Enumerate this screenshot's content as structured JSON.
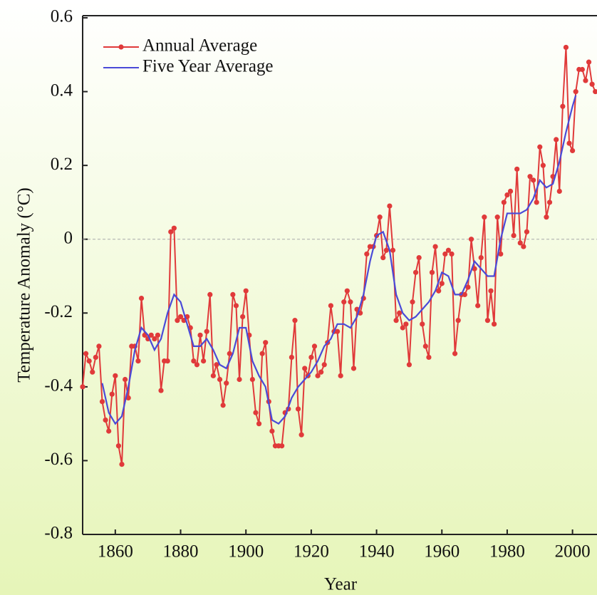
{
  "chart_data": {
    "type": "line",
    "xlabel": "Year",
    "ylabel": "Temperature Anomaly (°C)",
    "xlim": [
      1850,
      2007.5
    ],
    "ylim": [
      -0.8,
      0.6
    ],
    "xticks": [
      1860,
      1880,
      1900,
      1920,
      1940,
      1960,
      1980,
      2000
    ],
    "yticks": [
      0.6,
      0.4,
      0.2,
      0,
      -0.2,
      -0.4,
      -0.6,
      -0.8
    ],
    "zero_line": true,
    "legend": "upper left",
    "series": [
      {
        "name": "Annual Average",
        "color": "#e03a3a",
        "markers": true,
        "x": [
          1850,
          1851,
          1852,
          1853,
          1854,
          1855,
          1856,
          1857,
          1858,
          1859,
          1860,
          1861,
          1862,
          1863,
          1864,
          1865,
          1866,
          1867,
          1868,
          1869,
          1870,
          1871,
          1872,
          1873,
          1874,
          1875,
          1876,
          1877,
          1878,
          1879,
          1880,
          1881,
          1882,
          1883,
          1884,
          1885,
          1886,
          1887,
          1888,
          1889,
          1890,
          1891,
          1892,
          1893,
          1894,
          1895,
          1896,
          1897,
          1898,
          1899,
          1900,
          1901,
          1902,
          1903,
          1904,
          1905,
          1906,
          1907,
          1908,
          1909,
          1910,
          1911,
          1912,
          1913,
          1914,
          1915,
          1916,
          1917,
          1918,
          1919,
          1920,
          1921,
          1922,
          1923,
          1924,
          1925,
          1926,
          1927,
          1928,
          1929,
          1930,
          1931,
          1932,
          1933,
          1934,
          1935,
          1936,
          1937,
          1938,
          1939,
          1940,
          1941,
          1942,
          1943,
          1944,
          1945,
          1946,
          1947,
          1948,
          1949,
          1950,
          1951,
          1952,
          1953,
          1954,
          1955,
          1956,
          1957,
          1958,
          1959,
          1960,
          1961,
          1962,
          1963,
          1964,
          1965,
          1966,
          1967,
          1968,
          1969,
          1970,
          1971,
          1972,
          1973,
          1974,
          1975,
          1976,
          1977,
          1978,
          1979,
          1980,
          1981,
          1982,
          1983,
          1984,
          1985,
          1986,
          1987,
          1988,
          1989,
          1990,
          1991,
          1992,
          1993,
          1994,
          1995,
          1996,
          1997,
          1998,
          1999,
          2000,
          2001,
          2002,
          2003,
          2004,
          2005,
          2006,
          2007
        ],
        "values": [
          -0.4,
          -0.31,
          -0.33,
          -0.36,
          -0.32,
          -0.29,
          -0.44,
          -0.49,
          -0.52,
          -0.42,
          -0.37,
          -0.56,
          -0.61,
          -0.38,
          -0.43,
          -0.29,
          -0.29,
          -0.33,
          -0.16,
          -0.26,
          -0.27,
          -0.26,
          -0.27,
          -0.26,
          -0.41,
          -0.33,
          -0.33,
          0.02,
          0.03,
          -0.22,
          -0.21,
          -0.22,
          -0.21,
          -0.24,
          -0.33,
          -0.34,
          -0.26,
          -0.33,
          -0.25,
          -0.15,
          -0.37,
          -0.34,
          -0.38,
          -0.45,
          -0.39,
          -0.31,
          -0.15,
          -0.18,
          -0.38,
          -0.21,
          -0.14,
          -0.26,
          -0.38,
          -0.47,
          -0.5,
          -0.31,
          -0.28,
          -0.44,
          -0.52,
          -0.56,
          -0.56,
          -0.56,
          -0.47,
          -0.46,
          -0.32,
          -0.22,
          -0.46,
          -0.53,
          -0.35,
          -0.37,
          -0.32,
          -0.29,
          -0.37,
          -0.36,
          -0.34,
          -0.28,
          -0.18,
          -0.25,
          -0.25,
          -0.37,
          -0.17,
          -0.14,
          -0.17,
          -0.35,
          -0.19,
          -0.2,
          -0.16,
          -0.04,
          -0.02,
          -0.02,
          0.01,
          0.06,
          -0.05,
          -0.03,
          0.09,
          -0.03,
          -0.22,
          -0.2,
          -0.24,
          -0.23,
          -0.34,
          -0.17,
          -0.09,
          -0.05,
          -0.23,
          -0.29,
          -0.32,
          -0.09,
          -0.02,
          -0.14,
          -0.12,
          -0.04,
          -0.03,
          -0.04,
          -0.31,
          -0.22,
          -0.15,
          -0.15,
          -0.13,
          0,
          -0.08,
          -0.18,
          -0.05,
          0.06,
          -0.22,
          -0.14,
          -0.23,
          0.06,
          -0.04,
          0.1,
          0.12,
          0.13,
          0.01,
          0.19,
          -0.01,
          -0.02,
          0.02,
          0.17,
          0.16,
          0.1,
          0.25,
          0.2,
          0.06,
          0.1,
          0.17,
          0.27,
          0.13,
          0.36,
          0.52,
          0.26,
          0.24,
          0.4,
          0.46,
          0.46,
          0.43,
          0.48,
          0.42,
          0.4
        ]
      },
      {
        "name": "Five Year Average",
        "color": "#4a4ad8",
        "markers": false,
        "x": [
          1856,
          1858,
          1860,
          1862,
          1864,
          1866,
          1868,
          1870,
          1872,
          1874,
          1876,
          1878,
          1880,
          1882,
          1884,
          1886,
          1888,
          1890,
          1892,
          1894,
          1896,
          1898,
          1900,
          1902,
          1904,
          1906,
          1908,
          1910,
          1912,
          1914,
          1916,
          1918,
          1920,
          1922,
          1924,
          1926,
          1928,
          1930,
          1932,
          1934,
          1936,
          1938,
          1940,
          1942,
          1944,
          1946,
          1948,
          1950,
          1952,
          1954,
          1956,
          1958,
          1960,
          1962,
          1964,
          1966,
          1968,
          1970,
          1972,
          1974,
          1976,
          1978,
          1980,
          1982,
          1984,
          1986,
          1988,
          1990,
          1992,
          1994,
          1996,
          1998,
          2000,
          2001
        ],
        "values": [
          -0.39,
          -0.47,
          -0.5,
          -0.48,
          -0.4,
          -0.3,
          -0.24,
          -0.26,
          -0.3,
          -0.27,
          -0.2,
          -0.15,
          -0.17,
          -0.23,
          -0.29,
          -0.29,
          -0.27,
          -0.3,
          -0.34,
          -0.35,
          -0.31,
          -0.24,
          -0.24,
          -0.33,
          -0.37,
          -0.4,
          -0.49,
          -0.5,
          -0.48,
          -0.43,
          -0.4,
          -0.38,
          -0.36,
          -0.33,
          -0.29,
          -0.27,
          -0.23,
          -0.23,
          -0.24,
          -0.21,
          -0.15,
          -0.06,
          0.01,
          0.02,
          -0.03,
          -0.15,
          -0.2,
          -0.22,
          -0.21,
          -0.19,
          -0.17,
          -0.14,
          -0.09,
          -0.1,
          -0.15,
          -0.15,
          -0.11,
          -0.06,
          -0.08,
          -0.1,
          -0.1,
          0,
          0.07,
          0.07,
          0.07,
          0.08,
          0.11,
          0.16,
          0.14,
          0.15,
          0.21,
          0.29,
          0.36,
          0.39
        ]
      }
    ]
  }
}
